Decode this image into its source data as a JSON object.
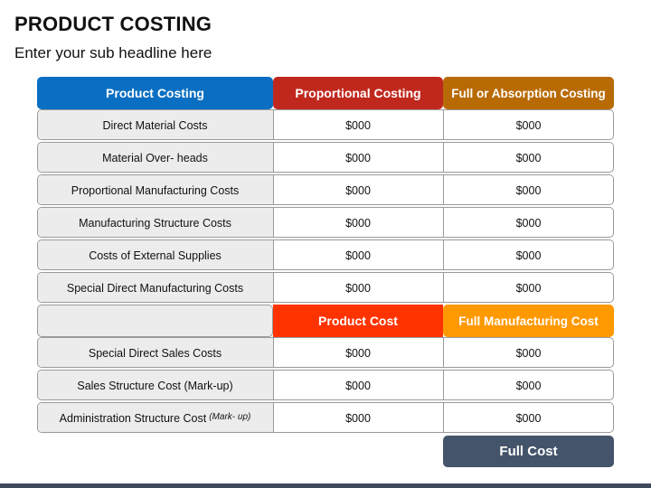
{
  "title": "PRODUCT COSTING",
  "subtitle": "Enter your sub headline here",
  "headers": {
    "col1": "Product Costing",
    "col2": "Proportional Costing",
    "col3": "Full or Absorption Costing"
  },
  "colors": {
    "col1_header": "#0a6fc2",
    "col2_header": "#c0281e",
    "col3_header": "#b86a05",
    "product_cost": "#ff3300",
    "full_manufacturing_cost": "#ff9900",
    "full_cost": "#44546a",
    "label_bg": "#ececec"
  },
  "rows_top": [
    {
      "label": "Direct Material Costs",
      "prop": "$000",
      "full": "$000"
    },
    {
      "label": "Material Over-  heads",
      "prop": "$000",
      "full": "$000"
    },
    {
      "label": "Proportional Manufacturing Costs",
      "prop": "$000",
      "full": "$000"
    },
    {
      "label": "Manufacturing Structure Costs",
      "prop": "$000",
      "full": "$000"
    },
    {
      "label": "Costs of External Supplies",
      "prop": "$000",
      "full": "$000"
    },
    {
      "label": "Special Direct Manufacturing Costs",
      "prop": "$000",
      "full": "$000"
    }
  ],
  "subtotals": {
    "product_cost": "Product Cost",
    "full_manufacturing_cost": "Full Manufacturing Cost"
  },
  "rows_bottom": [
    {
      "label": "Special Direct Sales Costs",
      "prop": "$000",
      "full": "$000"
    },
    {
      "label": "Sales Structure Cost (Mark-up)",
      "prop": "$000",
      "full": "$000"
    },
    {
      "label": "Administration Structure Cost",
      "label_note": "(Mark- up)",
      "prop": "$000",
      "full": "$000"
    }
  ],
  "total": {
    "full_cost": "Full Cost"
  }
}
